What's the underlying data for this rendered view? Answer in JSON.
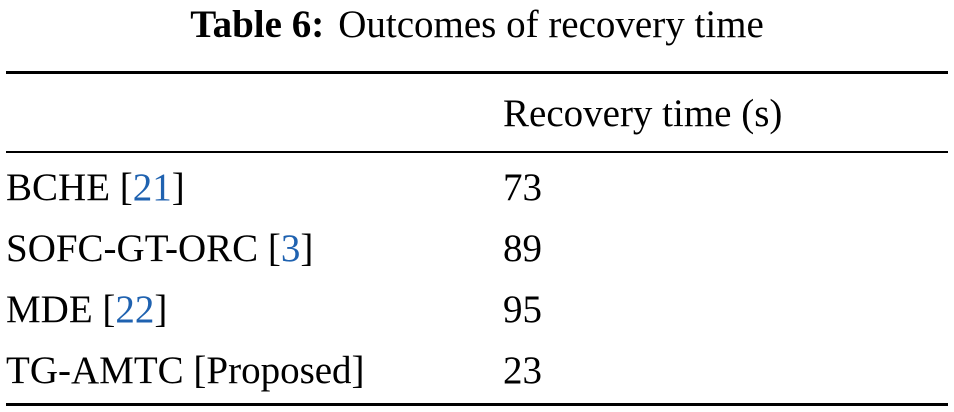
{
  "caption": {
    "label": "Table 6:",
    "text": "Outcomes of recovery time"
  },
  "table": {
    "header": [
      "Recovery time (s)"
    ],
    "rows": [
      {
        "method": [
          "BCHE [",
          "21",
          "]"
        ],
        "value": "73"
      },
      {
        "method": [
          "SOFC-GT-ORC [",
          "3",
          "]"
        ],
        "value": "89"
      },
      {
        "method": [
          "MDE [",
          "22",
          "]"
        ],
        "value": "95"
      },
      {
        "method": [
          "TG-AMTC [Proposed]"
        ],
        "value": "23"
      }
    ]
  }
}
